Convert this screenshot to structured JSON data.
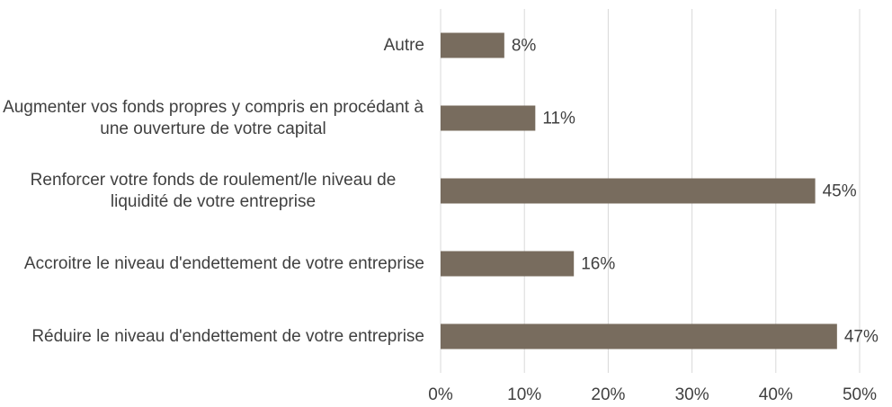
{
  "chart_data": {
    "type": "bar",
    "orientation": "horizontal",
    "categories": [
      "Autre",
      "Augmenter vos fonds propres y compris en procédant à une ouverture de votre capital",
      "Renforcer votre fonds de roulement/le niveau de liquidité de votre entreprise",
      "Accroitre le niveau d'endettement de votre entreprise",
      "Réduire le niveau d'endettement de votre entreprise"
    ],
    "values": [
      7.6,
      11.3,
      44.7,
      15.9,
      47.3
    ],
    "value_labels": [
      "8%",
      "11%",
      "45%",
      "16%",
      "47%"
    ],
    "color": "#786c5e",
    "xlim": [
      0,
      50
    ],
    "xticks": [
      {
        "value": 0,
        "label": "0%"
      },
      {
        "value": 10,
        "label": "10%"
      },
      {
        "value": 20,
        "label": "20%"
      },
      {
        "value": 30,
        "label": "30%"
      },
      {
        "value": 40,
        "label": "40%"
      },
      {
        "value": 50,
        "label": "50%"
      }
    ],
    "grid": true
  }
}
